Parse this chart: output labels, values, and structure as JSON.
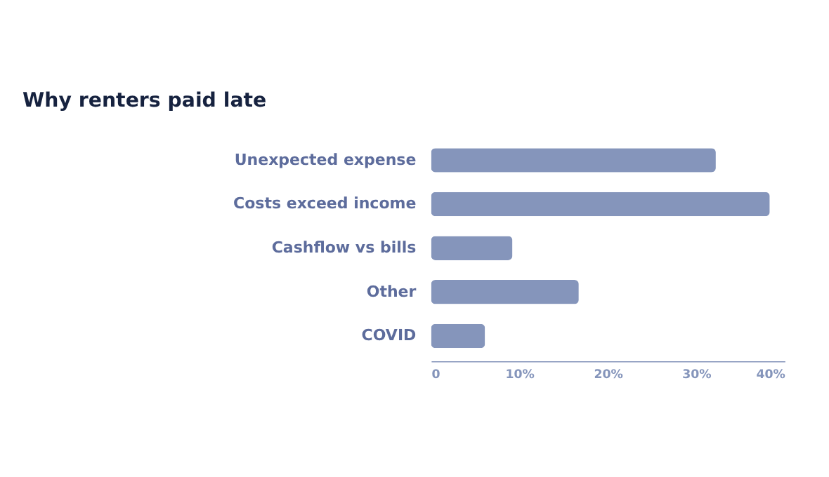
{
  "chart_data": {
    "type": "bar",
    "orientation": "horizontal",
    "title": "Why renters paid late",
    "categories": [
      "Unexpected expense",
      "Costs exceed income",
      "Cashflow vs bills",
      "Other",
      "COVID"
    ],
    "values": [
      32.2,
      38.3,
      9.2,
      16.7,
      6.1
    ],
    "color": "#8595bb",
    "xlim": [
      0,
      40
    ],
    "xticks": [
      0,
      {
        "value": 10,
        "label": "10%"
      },
      {
        "value": 20,
        "label": "20%"
      },
      {
        "value": 30,
        "label": "30%"
      },
      {
        "value": 40,
        "label": "40%"
      }
    ],
    "grid": false
  }
}
